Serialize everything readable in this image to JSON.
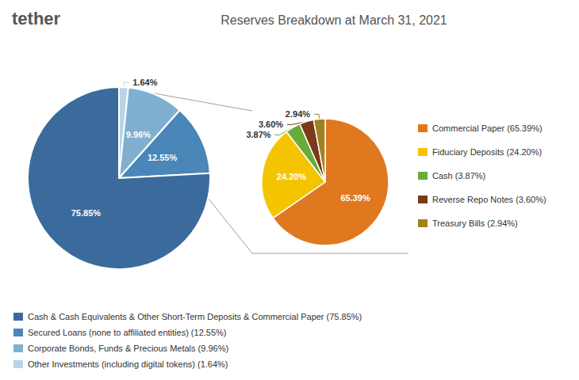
{
  "chart_data": [
    {
      "type": "pie",
      "title": "Reserves Breakdown at March 31, 2021",
      "annotations": [
        "tether"
      ],
      "categories": [
        "Other Investments (including digital tokens) (1.64%)",
        "Corporate Bonds, Funds & Precious Metals (9.96%)",
        "Secured Loans (none to affiliated entities) (12.55%)",
        "Cash & Cash Equivalents & Other Short-Term Deposits & Commercial Paper (75.85%)"
      ],
      "values": [
        1.64,
        9.96,
        12.55,
        75.85
      ],
      "value_labels": [
        "1.64%",
        "9.96%",
        "12.55%",
        "75.85%"
      ],
      "colors": [
        "#b8d4e8",
        "#7fb0d0",
        "#4a86b8",
        "#3a6b9c"
      ],
      "data_labels": true,
      "legend": "bottom"
    },
    {
      "type": "pie",
      "categories": [
        "Commercial Paper (65.39%)",
        "Fiduciary Deposits (24.20%)",
        "Cash (3.87%)",
        "Reverse Repo Notes (3.60%)",
        "Treasury Bills (2.94%)"
      ],
      "values": [
        65.39,
        24.2,
        3.87,
        3.6,
        2.94
      ],
      "value_labels": [
        "65.39%",
        "24.20%",
        "3.87%",
        "3.60%",
        "2.94%"
      ],
      "colors": [
        "#e07820",
        "#f5c400",
        "#6aaa3a",
        "#7b3a1a",
        "#a08020"
      ],
      "data_labels": true,
      "legend": "right"
    }
  ]
}
